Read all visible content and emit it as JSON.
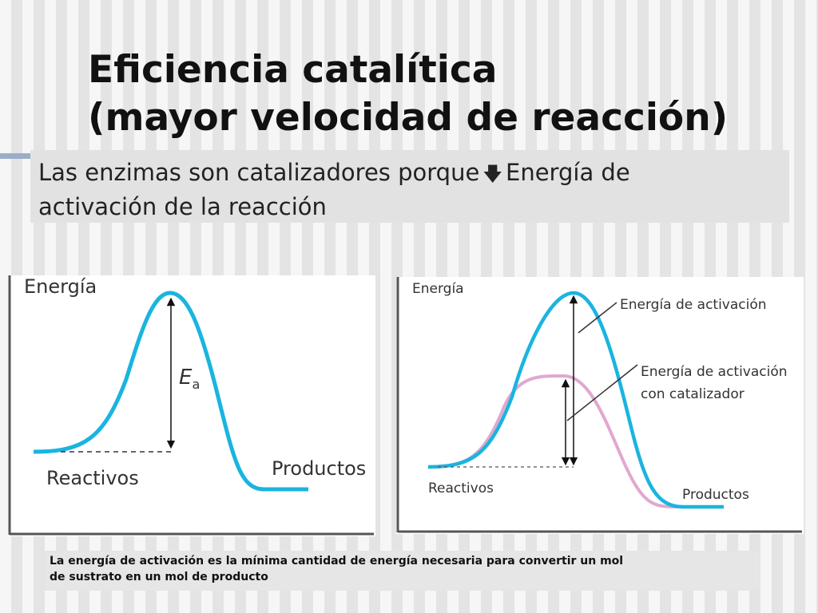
{
  "title": {
    "line1": "Eficiencia catalítica",
    "line2": "(mayor velocidad de reacción)"
  },
  "subtitle": {
    "before_arrow": "Las enzimas son catalizadores porque",
    "arrow_icon": "arrow-down-icon",
    "after_arrow": "Energía de",
    "line2": "activación de la reacción"
  },
  "diagram_left": {
    "axis_label": "Energía",
    "ea_symbol": "E",
    "ea_subscript": "a",
    "reactants_label": "Reactivos",
    "products_label": "Productos",
    "curve_color": "#1ab4e0"
  },
  "diagram_right": {
    "axis_label": "Energía",
    "activation_label": "Energía de activación",
    "catalyzed_label_line1": "Energía de activación",
    "catalyzed_label_line2": "con catalizador",
    "reactants_label": "Reactivos",
    "products_label": "Productos",
    "curve_color": "#1ab4e0",
    "catalyzed_curve_color": "#e0a8cf"
  },
  "caption": {
    "line1": "La energía de activación es la mínima cantidad de energía necesaria para convertir un mol",
    "line2": "de sustrato en un mol de producto"
  }
}
